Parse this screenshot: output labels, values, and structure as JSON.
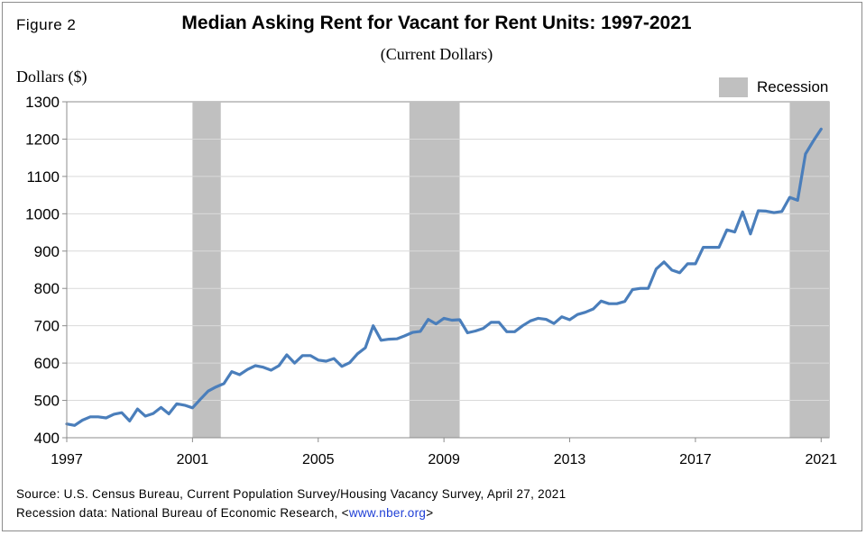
{
  "figure_label": "Figure 2",
  "chart_data": {
    "type": "line",
    "title": "Median Asking Rent for Vacant  for Rent Units: 1997-2021",
    "subtitle": "(Current Dollars)",
    "ylabel": "Dollars ($)",
    "xlabel": "",
    "ylim": [
      400,
      1300
    ],
    "xlim": [
      1997,
      2021.25
    ],
    "yticks": [
      "400",
      "500",
      "600",
      "700",
      "800",
      "900",
      "1000",
      "1100",
      "1200",
      "1300"
    ],
    "xticks": [
      "1997",
      "2001",
      "2005",
      "2009",
      "2013",
      "2017",
      "2021"
    ],
    "grid": "horizontal",
    "legend": {
      "placement": "top-right",
      "entries": [
        "Recession"
      ]
    },
    "colors": {
      "line": "#4a7ebb",
      "recession": "#c0c0c0",
      "grid": "#d9d9d9"
    },
    "recessions": [
      {
        "start": 2001.0,
        "end": 2001.9
      },
      {
        "start": 2007.9,
        "end": 2009.5
      },
      {
        "start": 2020.0,
        "end": 2021.25
      }
    ],
    "series": [
      {
        "x": [
          1997.0,
          1997.25,
          1997.5,
          1997.75,
          1998.0,
          1998.25,
          1998.5,
          1998.75,
          1999.0,
          1999.25,
          1999.5,
          1999.75,
          2000.0,
          2000.25,
          2000.5,
          2000.75,
          2001.0,
          2001.25,
          2001.5,
          2001.75,
          2002.0,
          2002.25,
          2002.5,
          2002.75,
          2003.0,
          2003.25,
          2003.5,
          2003.75,
          2004.0,
          2004.25,
          2004.5,
          2004.75,
          2005.0,
          2005.25,
          2005.5,
          2005.75,
          2006.0,
          2006.25,
          2006.5,
          2006.75,
          2007.0,
          2007.25,
          2007.5,
          2007.75,
          2008.0,
          2008.25,
          2008.5,
          2008.75,
          2009.0,
          2009.25,
          2009.5,
          2009.75,
          2010.0,
          2010.25,
          2010.5,
          2010.75,
          2011.0,
          2011.25,
          2011.5,
          2011.75,
          2012.0,
          2012.25,
          2012.5,
          2012.75,
          2013.0,
          2013.25,
          2013.5,
          2013.75,
          2014.0,
          2014.25,
          2014.5,
          2014.75,
          2015.0,
          2015.25,
          2015.5,
          2015.75,
          2016.0,
          2016.25,
          2016.5,
          2016.75,
          2017.0,
          2017.25,
          2017.5,
          2017.75,
          2018.0,
          2018.25,
          2018.5,
          2018.75,
          2019.0,
          2019.25,
          2019.5,
          2019.75,
          2020.0,
          2020.25,
          2020.5,
          2020.75,
          2021.0
        ],
        "y": [
          437,
          433,
          447,
          456,
          456,
          453,
          463,
          467,
          445,
          477,
          458,
          465,
          481,
          464,
          491,
          487,
          480,
          503,
          525,
          536,
          545,
          577,
          569,
          583,
          593,
          589,
          581,
          593,
          622,
          600,
          620,
          620,
          608,
          605,
          612,
          591,
          601,
          625,
          641,
          700,
          661,
          664,
          665,
          673,
          682,
          685,
          717,
          705,
          720,
          715,
          716,
          681,
          686,
          693,
          709,
          709,
          684,
          684,
          700,
          713,
          720,
          717,
          706,
          724,
          716,
          730,
          736,
          745,
          766,
          759,
          759,
          765,
          797,
          800,
          800,
          852,
          871,
          849,
          842,
          866,
          866,
          910,
          910,
          910,
          957,
          951,
          1005,
          946,
          1008,
          1007,
          1003,
          1006,
          1044,
          1036,
          1160,
          1195,
          1227
        ]
      }
    ]
  },
  "source_lines": [
    "Source: U.S. Census Bureau, Current Population  Survey/Housing Vacancy Survey, April 27, 2021"
  ],
  "recession_note": {
    "prefix": "Recession data: National Bureau of Economic Research, <",
    "link": "www.nber.org",
    "suffix": ">"
  }
}
